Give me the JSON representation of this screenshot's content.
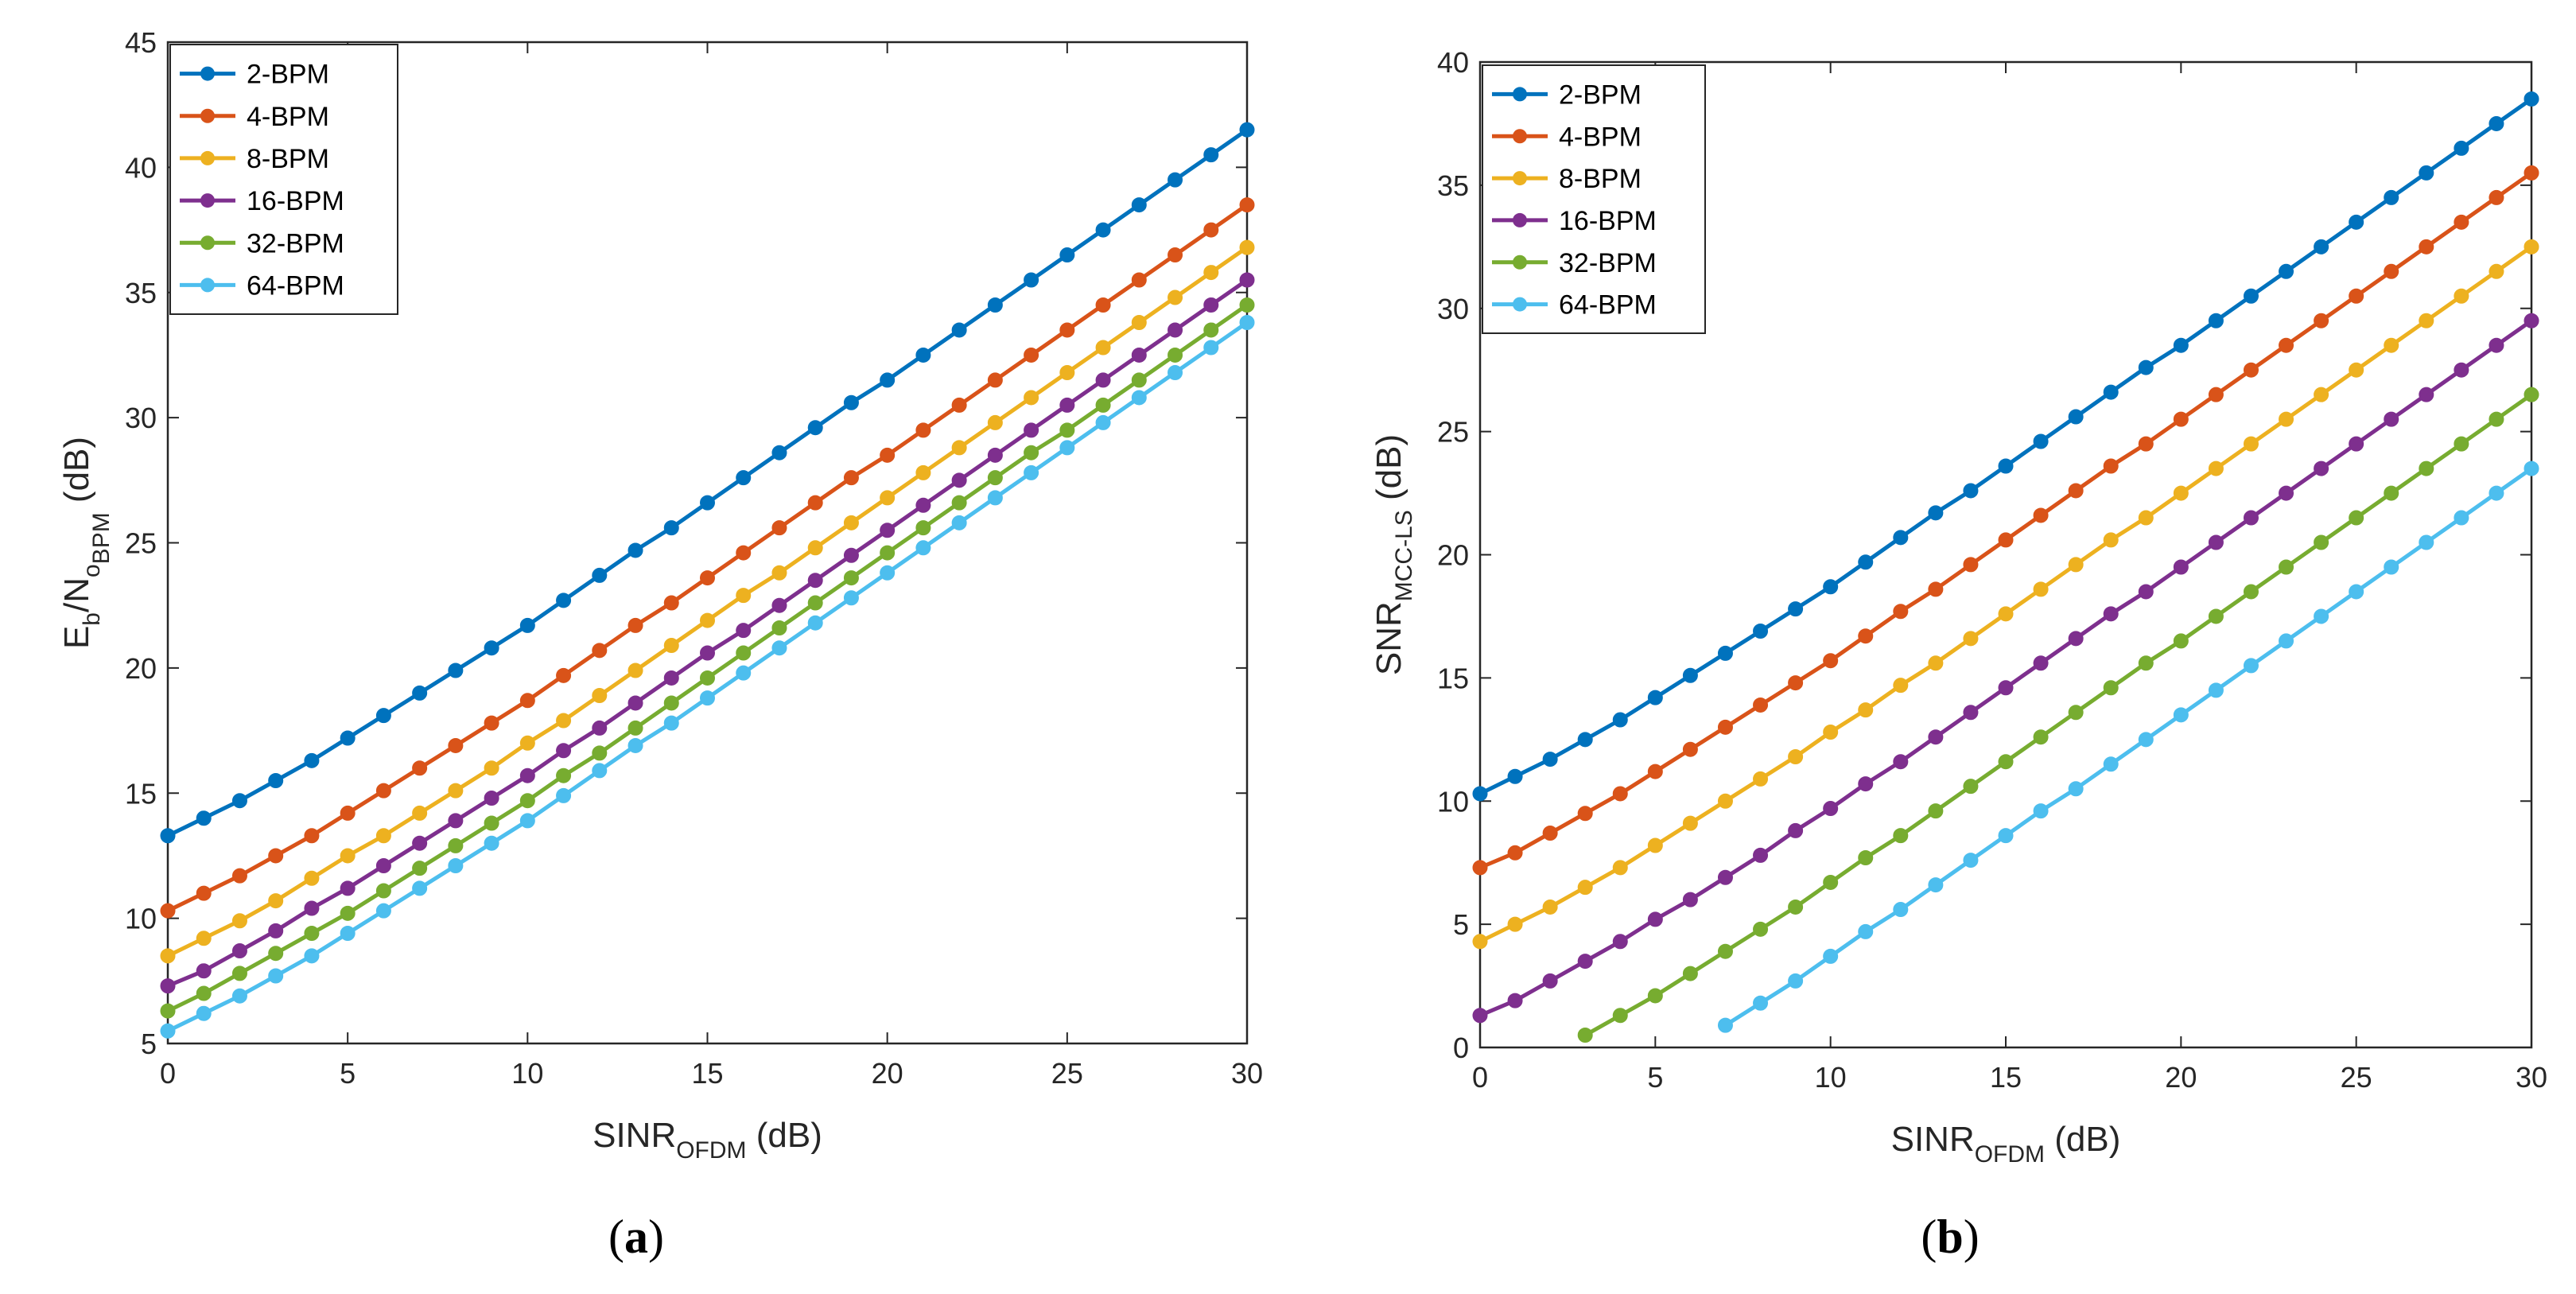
{
  "chart_data": [
    {
      "type": "line",
      "caption": "(a)",
      "xlabel": {
        "main": "SINR",
        "sub": "OFDM",
        "unit": " (dB)"
      },
      "ylabel": {
        "E": "E",
        "b": "b",
        "N": "/N",
        "o": "o",
        "BPM": "BPM",
        "unit": " (dB)"
      },
      "xlim": [
        0,
        30
      ],
      "ylim": [
        5,
        45
      ],
      "xticks": [
        0,
        5,
        10,
        15,
        20,
        25,
        30
      ],
      "yticks": [
        5,
        10,
        15,
        20,
        25,
        30,
        35,
        40,
        45
      ],
      "legend_position": "top-left",
      "series": [
        {
          "name": "2-BPM",
          "color": "#0072BD",
          "x0": 0,
          "x1": 30,
          "values": [
            13.3,
            14.0,
            14.7,
            15.5,
            16.3,
            17.2,
            18.1,
            19.0,
            19.9,
            20.8,
            21.7,
            22.7,
            23.7,
            24.7,
            25.6,
            26.6,
            27.6,
            28.6,
            29.6,
            30.6,
            31.5,
            32.5,
            33.5,
            34.5,
            35.5,
            36.5,
            37.5,
            38.5,
            39.5,
            40.5,
            41.5
          ]
        },
        {
          "name": "4-BPM",
          "color": "#D95319",
          "x0": 0,
          "x1": 30,
          "values": [
            10.3,
            11.0,
            11.7,
            12.5,
            13.3,
            14.2,
            15.1,
            16.0,
            16.9,
            17.8,
            18.7,
            19.7,
            20.7,
            21.7,
            22.6,
            23.6,
            24.6,
            25.6,
            26.6,
            27.6,
            28.5,
            29.5,
            30.5,
            31.5,
            32.5,
            33.5,
            34.5,
            35.5,
            36.5,
            37.5,
            38.5
          ]
        },
        {
          "name": "8-BPM",
          "color": "#EDB120",
          "x0": 0,
          "x1": 30,
          "values": [
            8.5,
            9.2,
            9.9,
            10.7,
            11.6,
            12.5,
            13.3,
            14.2,
            15.1,
            16.0,
            17.0,
            17.9,
            18.9,
            19.9,
            20.9,
            21.9,
            22.9,
            23.8,
            24.8,
            25.8,
            26.8,
            27.8,
            28.8,
            29.8,
            30.8,
            31.8,
            32.8,
            33.8,
            34.8,
            35.8,
            36.8
          ]
        },
        {
          "name": "16-BPM",
          "color": "#7E2F8E",
          "x0": 0,
          "x1": 30,
          "values": [
            7.3,
            7.9,
            8.7,
            9.5,
            10.4,
            11.2,
            12.1,
            13.0,
            13.9,
            14.8,
            15.7,
            16.7,
            17.6,
            18.6,
            19.6,
            20.6,
            21.5,
            22.5,
            23.5,
            24.5,
            25.5,
            26.5,
            27.5,
            28.5,
            29.5,
            30.5,
            31.5,
            32.5,
            33.5,
            34.5,
            35.5
          ]
        },
        {
          "name": "32-BPM",
          "color": "#77AC30",
          "x0": 0,
          "x1": 30,
          "values": [
            6.3,
            7.0,
            7.8,
            8.6,
            9.4,
            10.2,
            11.1,
            12.0,
            12.9,
            13.8,
            14.7,
            15.7,
            16.6,
            17.6,
            18.6,
            19.6,
            20.6,
            21.6,
            22.6,
            23.6,
            24.6,
            25.6,
            26.6,
            27.6,
            28.6,
            29.5,
            30.5,
            31.5,
            32.5,
            33.5,
            34.5
          ]
        },
        {
          "name": "64-BPM",
          "color": "#4DBEEE",
          "x0": 0,
          "x1": 30,
          "values": [
            5.5,
            6.2,
            6.9,
            7.7,
            8.5,
            9.4,
            10.3,
            11.2,
            12.1,
            13.0,
            13.9,
            14.9,
            15.9,
            16.9,
            17.8,
            18.8,
            19.8,
            20.8,
            21.8,
            22.8,
            23.8,
            24.8,
            25.8,
            26.8,
            27.8,
            28.8,
            29.8,
            30.8,
            31.8,
            32.8,
            33.8
          ]
        }
      ]
    },
    {
      "type": "line",
      "caption": "(b)",
      "xlabel": {
        "main": "SINR",
        "sub": "OFDM",
        "unit": " (dB)"
      },
      "ylabel": {
        "main": "SNR",
        "sub": "MCC-LS",
        "unit": " (dB)"
      },
      "xlim": [
        0,
        30
      ],
      "ylim": [
        0,
        40
      ],
      "xticks": [
        0,
        5,
        10,
        15,
        20,
        25,
        30
      ],
      "yticks": [
        0,
        5,
        10,
        15,
        20,
        25,
        30,
        35,
        40
      ],
      "legend_position": "top-left",
      "series": [
        {
          "name": "2-BPM",
          "color": "#0072BD",
          "x0": 0,
          "x1": 30,
          "values": [
            10.3,
            11.0,
            11.7,
            12.5,
            13.3,
            14.2,
            15.1,
            16.0,
            16.9,
            17.8,
            18.7,
            19.7,
            20.7,
            21.7,
            22.6,
            23.6,
            24.6,
            25.6,
            26.6,
            27.6,
            28.5,
            29.5,
            30.5,
            31.5,
            32.5,
            33.5,
            34.5,
            35.5,
            36.5,
            37.5,
            38.5
          ]
        },
        {
          "name": "4-BPM",
          "color": "#D95319",
          "x0": 0,
          "x1": 30,
          "values": [
            7.3,
            7.9,
            8.7,
            9.5,
            10.3,
            11.2,
            12.1,
            13.0,
            13.9,
            14.8,
            15.7,
            16.7,
            17.7,
            18.6,
            19.6,
            20.6,
            21.6,
            22.6,
            23.6,
            24.5,
            25.5,
            26.5,
            27.5,
            28.5,
            29.5,
            30.5,
            31.5,
            32.5,
            33.5,
            34.5,
            35.5
          ]
        },
        {
          "name": "8-BPM",
          "color": "#EDB120",
          "x0": 0,
          "x1": 30,
          "values": [
            4.3,
            5.0,
            5.7,
            6.5,
            7.3,
            8.2,
            9.1,
            10.0,
            10.9,
            11.8,
            12.8,
            13.7,
            14.7,
            15.6,
            16.6,
            17.6,
            18.6,
            19.6,
            20.6,
            21.5,
            22.5,
            23.5,
            24.5,
            25.5,
            26.5,
            27.5,
            28.5,
            29.5,
            30.5,
            31.5,
            32.5
          ]
        },
        {
          "name": "16-BPM",
          "color": "#7E2F8E",
          "x0": 0,
          "x1": 30,
          "values": [
            1.3,
            1.9,
            2.7,
            3.5,
            4.3,
            5.2,
            6.0,
            6.9,
            7.8,
            8.8,
            9.7,
            10.7,
            11.6,
            12.6,
            13.6,
            14.6,
            15.6,
            16.6,
            17.6,
            18.5,
            19.5,
            20.5,
            21.5,
            22.5,
            23.5,
            24.5,
            25.5,
            26.5,
            27.5,
            28.5,
            29.5
          ]
        },
        {
          "name": "32-BPM",
          "color": "#77AC30",
          "x0": 3,
          "x1": 30,
          "values": [
            0.5,
            1.3,
            2.1,
            3.0,
            3.9,
            4.8,
            5.7,
            6.7,
            7.7,
            8.6,
            9.6,
            10.6,
            11.6,
            12.6,
            13.6,
            14.6,
            15.6,
            16.5,
            17.5,
            18.5,
            19.5,
            20.5,
            21.5,
            22.5,
            23.5,
            24.5,
            25.5,
            26.5
          ]
        },
        {
          "name": "64-BPM",
          "color": "#4DBEEE",
          "x0": 7,
          "x1": 30,
          "values": [
            0.9,
            1.8,
            2.7,
            3.7,
            4.7,
            5.6,
            6.6,
            7.6,
            8.6,
            9.6,
            10.5,
            11.5,
            12.5,
            13.5,
            14.5,
            15.5,
            16.5,
            17.5,
            18.5,
            19.5,
            20.5,
            21.5,
            22.5,
            23.5
          ]
        }
      ]
    }
  ]
}
